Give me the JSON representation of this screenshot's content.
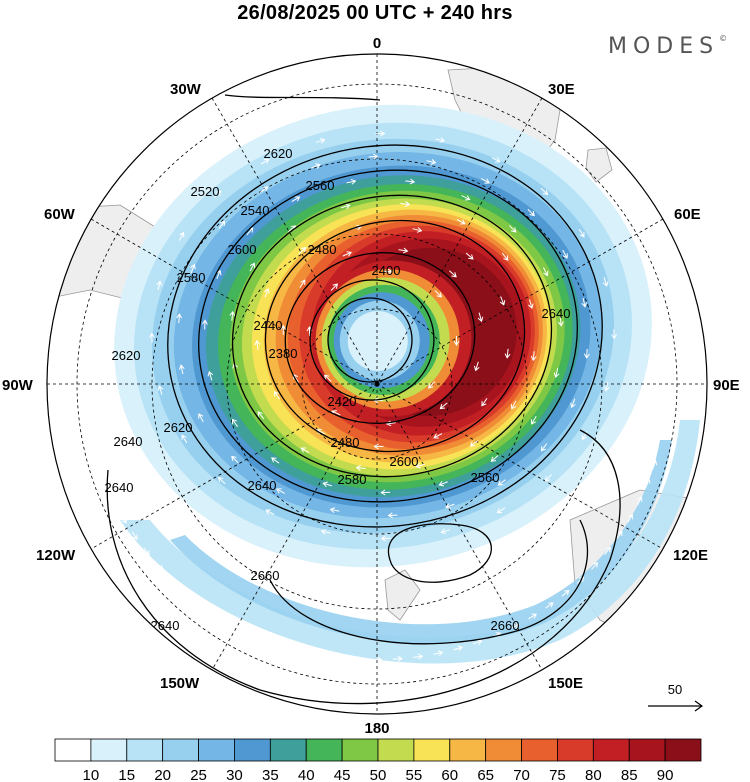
{
  "title": "26/08/2025  00 UTC  + 240 hrs",
  "brand": "MODES",
  "brand_mark": "©",
  "longitude_labels": {
    "top": "0",
    "lon30e": "30E",
    "lon60e": "60E",
    "lon90e": "90E",
    "lon120e": "120E",
    "lon150e": "150E",
    "bottom": "180",
    "lon150w": "150W",
    "lon120w": "120W",
    "lon90w": "90W",
    "lon60w": "60W",
    "lon30w": "30W"
  },
  "contour_labels": [
    "2620",
    "2560",
    "2480",
    "2400",
    "2580",
    "2600",
    "2540",
    "2520",
    "2440",
    "2380",
    "2620",
    "2420",
    "2480",
    "2600",
    "2580",
    "2560",
    "2640",
    "2640",
    "2620",
    "2640",
    "2660",
    "2660",
    "2640",
    "2640"
  ],
  "colorbar": {
    "ticks": [
      "10",
      "15",
      "20",
      "25",
      "30",
      "35",
      "40",
      "45",
      "50",
      "55",
      "60",
      "65",
      "70",
      "75",
      "80",
      "85",
      "90"
    ],
    "colors": [
      "#ffffff",
      "#d9f1fb",
      "#b8e3f6",
      "#97d0ef",
      "#74b6e5",
      "#4f98d1",
      "#3f9f9a",
      "#44b558",
      "#7ec845",
      "#c3dc4f",
      "#f8e255",
      "#f6b744",
      "#f08c36",
      "#e8602d",
      "#d93b2b",
      "#c21f25",
      "#a8141e",
      "#8a0f18"
    ]
  },
  "vector_reference": "50",
  "colors": {
    "jet_core": "#a8141e",
    "ocean_fill": "#ffffff",
    "land_fill": "#eeeeee",
    "contour": "#000000"
  }
}
